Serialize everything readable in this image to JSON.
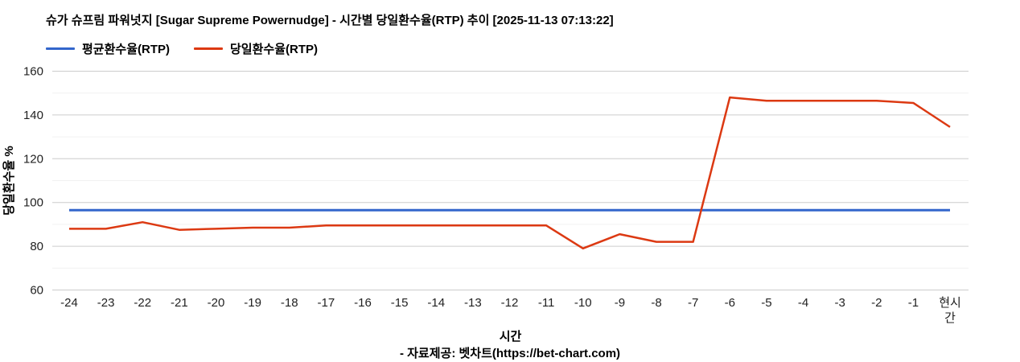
{
  "header": {
    "title": "슈가 슈프림 파워넛지 [Sugar Supreme Powernudge] - 시간별 당일환수율(RTP) 추이 [2025-11-13 07:13:22]",
    "legend": [
      {
        "label": "평균환수율(RTP)",
        "color": "#3366cc"
      },
      {
        "label": "당일환수율(RTP)",
        "color": "#dc3912"
      }
    ]
  },
  "chart_data": {
    "type": "line",
    "title": "슈가 슈프림 파워넛지 [Sugar Supreme Powernudge] - 시간별 당일환수율(RTP) 추이 [2025-11-13 07:13:22]",
    "xlabel": "시간",
    "ylabel": "당일환수율 %",
    "ylim": [
      60,
      160
    ],
    "yticks": [
      60,
      80,
      100,
      120,
      140,
      160
    ],
    "minor_gridline_step": 10,
    "grid": "horizontal",
    "legend_position": "top-left",
    "categories": [
      "-24",
      "-23",
      "-22",
      "-21",
      "-20",
      "-19",
      "-18",
      "-17",
      "-16",
      "-15",
      "-14",
      "-13",
      "-12",
      "-11",
      "-10",
      "-9",
      "-8",
      "-7",
      "-6",
      "-5",
      "-4",
      "-3",
      "-2",
      "-1",
      "현시간"
    ],
    "tick_wrap": {
      "현시간": [
        "현시",
        "간"
      ]
    },
    "series": [
      {
        "name": "평균환수율(RTP)",
        "color": "#3366cc",
        "stroke_width": 3,
        "values": [
          96.5,
          96.5,
          96.5,
          96.5,
          96.5,
          96.5,
          96.5,
          96.5,
          96.5,
          96.5,
          96.5,
          96.5,
          96.5,
          96.5,
          96.5,
          96.5,
          96.5,
          96.5,
          96.5,
          96.5,
          96.5,
          96.5,
          96.5,
          96.5,
          96.5
        ]
      },
      {
        "name": "당일환수율(RTP)",
        "color": "#dc3912",
        "stroke_width": 2.5,
        "values": [
          88,
          88,
          91,
          87.5,
          88,
          88.5,
          88.5,
          89.5,
          89.5,
          89.5,
          89.5,
          89.5,
          89.5,
          89.5,
          79,
          85.5,
          82,
          82,
          148,
          146.5,
          146.5,
          146.5,
          146.5,
          145.5,
          134.5
        ]
      }
    ],
    "colors": {
      "major_gridline": "#cccccc",
      "minor_gridline": "#f1f1f1",
      "tick_label": "#222222",
      "axis_title": "#000000"
    }
  },
  "footer": {
    "credit": "- 자료제공: 벳차트(https://bet-chart.com)"
  }
}
